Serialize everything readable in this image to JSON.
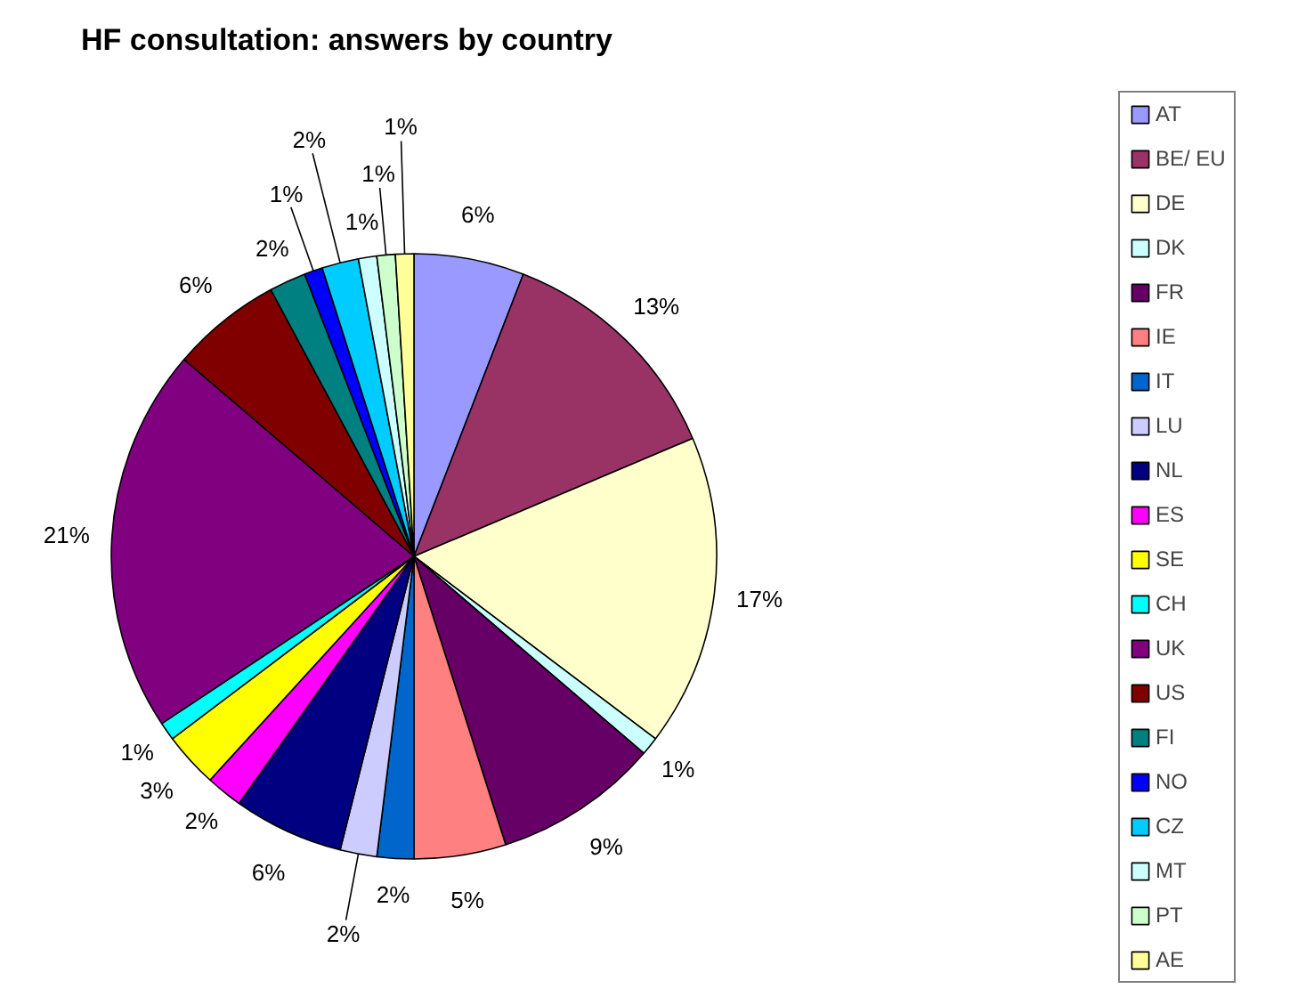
{
  "chart_data": {
    "type": "pie",
    "title": "HF consultation: answers by country",
    "categories": [
      "AT",
      "BE/ EU",
      "DE",
      "DK",
      "FR",
      "IE",
      "IT",
      "LU",
      "NL",
      "ES",
      "SE",
      "CH",
      "UK",
      "US",
      "FI",
      "NO",
      "CZ",
      "MT",
      "PT",
      "AE"
    ],
    "values": [
      6,
      13,
      17,
      1,
      9,
      5,
      2,
      2,
      6,
      2,
      3,
      1,
      21,
      6,
      2,
      1,
      2,
      1,
      1,
      1
    ],
    "value_labels": [
      "6%",
      "13%",
      "17%",
      "1%",
      "9%",
      "5%",
      "2%",
      "2%",
      "6%",
      "2%",
      "3%",
      "1%",
      "21%",
      "6%",
      "2%",
      "1%",
      "2%",
      "1%",
      "1%",
      "1%"
    ],
    "colors": [
      "#9999ff",
      "#993366",
      "#ffffcc",
      "#ccffff",
      "#660066",
      "#ff8080",
      "#0066cc",
      "#ccccff",
      "#000080",
      "#ff00ff",
      "#ffff00",
      "#00ffff",
      "#800080",
      "#800000",
      "#008080",
      "#0000ff",
      "#00ccff",
      "#ccffff",
      "#ccffcc",
      "#ffff99"
    ],
    "legend": "right"
  }
}
